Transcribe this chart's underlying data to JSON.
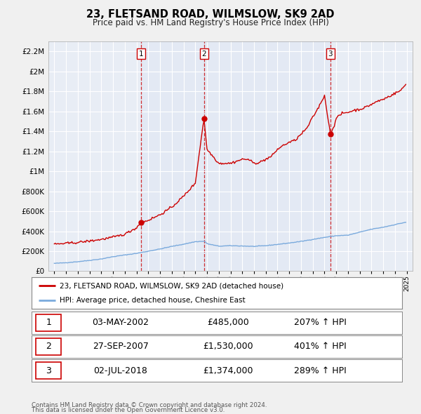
{
  "title": "23, FLETSAND ROAD, WILMSLOW, SK9 2AD",
  "subtitle": "Price paid vs. HM Land Registry's House Price Index (HPI)",
  "bg_color": "#f0f0f0",
  "plot_bg_color": "#e8edf5",
  "grid_color": "#ffffff",
  "sale_color": "#cc0000",
  "hpi_color": "#7aaadd",
  "ylim": [
    0,
    2300000
  ],
  "yticks": [
    0,
    200000,
    400000,
    600000,
    800000,
    1000000,
    1200000,
    1400000,
    1600000,
    1800000,
    2000000,
    2200000
  ],
  "ytick_labels": [
    "£0",
    "£200K",
    "£400K",
    "£600K",
    "£800K",
    "£1M",
    "£1.2M",
    "£1.4M",
    "£1.6M",
    "£1.8M",
    "£2M",
    "£2.2M"
  ],
  "xlim_start": 1994.5,
  "xlim_end": 2025.5,
  "sale_vlines": [
    2002.37,
    2007.74,
    2018.5
  ],
  "sales": [
    {
      "year": 2002.37,
      "price": 485000
    },
    {
      "year": 2007.74,
      "price": 1530000
    },
    {
      "year": 2018.5,
      "price": 1374000
    }
  ],
  "legend_label_red": "23, FLETSAND ROAD, WILMSLOW, SK9 2AD (detached house)",
  "legend_label_blue": "HPI: Average price, detached house, Cheshire East",
  "table_rows": [
    {
      "num": "1",
      "date": "03-MAY-2002",
      "price": "£485,000",
      "hpi": "207% ↑ HPI"
    },
    {
      "num": "2",
      "date": "27-SEP-2007",
      "price": "£1,530,000",
      "hpi": "401% ↑ HPI"
    },
    {
      "num": "3",
      "date": "02-JUL-2018",
      "price": "£1,374,000",
      "hpi": "289% ↑ HPI"
    }
  ],
  "footer1": "Contains HM Land Registry data © Crown copyright and database right 2024.",
  "footer2": "This data is licensed under the Open Government Licence v3.0."
}
